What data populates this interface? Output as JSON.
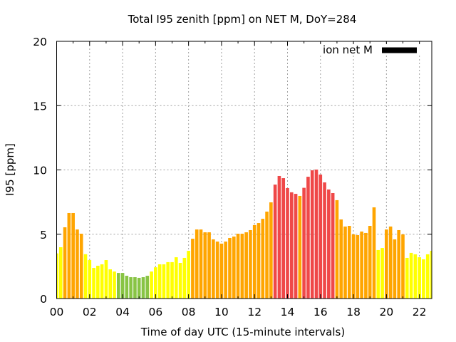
{
  "chart_data": {
    "type": "bar",
    "title": "Total I95 zenith [ppm] on NET M, DoY=284",
    "xlabel": "Time of day UTC (15-minute intervals)",
    "ylabel": "I95 [ppm]",
    "xlim": [
      0,
      22.75
    ],
    "ylim": [
      0,
      20
    ],
    "grid": true,
    "x_ticks": [
      0,
      2,
      4,
      6,
      8,
      10,
      12,
      14,
      16,
      18,
      20,
      22
    ],
    "x_tick_labels": [
      "00",
      "02",
      "04",
      "06",
      "08",
      "10",
      "12",
      "14",
      "16",
      "18",
      "20",
      "22"
    ],
    "y_ticks": [
      0,
      5,
      10,
      15,
      20
    ],
    "y_tick_labels": [
      "0",
      "5",
      "10",
      "15",
      "20"
    ],
    "interval_hours": 0.25,
    "legend": {
      "position": "top-right",
      "entries": [
        {
          "label": "ion net M",
          "color": "#000000"
        }
      ]
    },
    "color_thresholds": [
      {
        "below": 2,
        "color": "#88c444"
      },
      {
        "below": 4,
        "color": "#ffff00"
      },
      {
        "below": 8,
        "color": "#ffa500"
      },
      {
        "below": 1000,
        "color": "#ef4848"
      }
    ],
    "series": [
      {
        "name": "ion net M",
        "values": [
          3.51,
          3.99,
          5.54,
          6.65,
          6.65,
          5.37,
          5.04,
          3.45,
          2.99,
          2.38,
          2.55,
          2.66,
          2.99,
          2.27,
          2.1,
          1.99,
          1.99,
          1.77,
          1.66,
          1.66,
          1.61,
          1.66,
          1.77,
          2.1,
          2.43,
          2.66,
          2.66,
          2.83,
          2.83,
          3.21,
          2.77,
          3.16,
          3.71,
          4.65,
          5.37,
          5.37,
          5.15,
          5.15,
          4.6,
          4.43,
          4.27,
          4.43,
          4.71,
          4.82,
          5.04,
          5.04,
          5.15,
          5.32,
          5.71,
          5.87,
          6.2,
          6.76,
          7.48,
          8.86,
          9.53,
          9.36,
          8.59,
          8.26,
          8.14,
          7.98,
          8.61,
          9.47,
          9.97,
          10.03,
          9.64,
          9.03,
          8.48,
          8.2,
          7.65,
          6.15,
          5.6,
          5.65,
          4.99,
          4.93,
          5.21,
          5.1,
          5.65,
          7.09,
          3.77,
          3.93,
          5.37,
          5.6,
          4.6,
          5.32,
          4.99,
          3.16,
          3.55,
          3.44,
          3.21,
          3.05,
          3.44,
          3.71
        ]
      }
    ]
  }
}
